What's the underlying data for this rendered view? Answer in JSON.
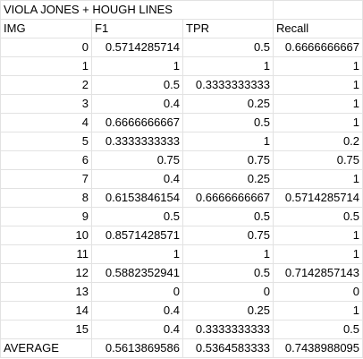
{
  "sheet": {
    "title": "VIOLA JONES + HOUGH LINES",
    "headers": [
      "IMG",
      "F1",
      "TPR",
      "Recall"
    ],
    "rows": [
      [
        "0",
        "0.5714285714",
        "0.5",
        "0.6666666667"
      ],
      [
        "1",
        "1",
        "1",
        "1"
      ],
      [
        "2",
        "0.5",
        "0.3333333333",
        "1"
      ],
      [
        "3",
        "0.4",
        "0.25",
        "1"
      ],
      [
        "4",
        "0.6666666667",
        "0.5",
        "1"
      ],
      [
        "5",
        "0.3333333333",
        "1",
        "0.2"
      ],
      [
        "6",
        "0.75",
        "0.75",
        "0.75"
      ],
      [
        "7",
        "0.4",
        "0.25",
        "1"
      ],
      [
        "8",
        "0.6153846154",
        "0.6666666667",
        "0.5714285714"
      ],
      [
        "9",
        "0.5",
        "0.5",
        "0.5"
      ],
      [
        "10",
        "0.8571428571",
        "0.75",
        "1"
      ],
      [
        "11",
        "1",
        "1",
        "1"
      ],
      [
        "12",
        "0.5882352941",
        "0.5",
        "0.7142857143"
      ],
      [
        "13",
        "0",
        "0",
        "0"
      ],
      [
        "14",
        "0.4",
        "0.25",
        "1"
      ],
      [
        "15",
        "0.4",
        "0.3333333333",
        "0.5"
      ]
    ],
    "average": {
      "label": "AVERAGE",
      "values": [
        "0.5613869586",
        "0.5364583333",
        "0.7438988095"
      ]
    }
  }
}
